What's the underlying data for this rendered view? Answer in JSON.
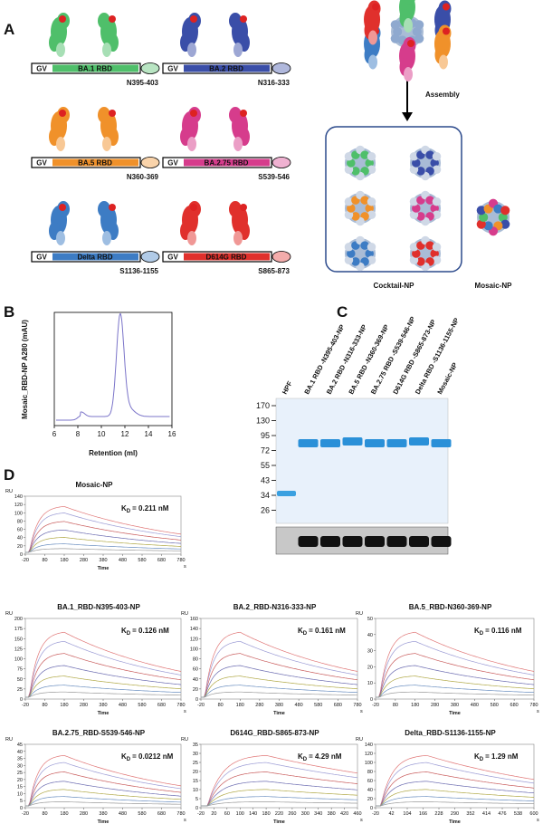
{
  "panel_a": {
    "letter": "A",
    "constructs": [
      {
        "gv": "GV",
        "rbd": "BA.1 RBD",
        "site": "N395-403",
        "color": "#4fbf6a"
      },
      {
        "gv": "GV",
        "rbd": "BA.2 RBD",
        "site": "N316-333",
        "color": "#3a4ea8"
      },
      {
        "gv": "GV",
        "rbd": "BA.5 RBD",
        "site": "N360-369",
        "color": "#f0912a"
      },
      {
        "gv": "GV",
        "rbd": "BA.2.75 RBD",
        "site": "S539-546",
        "color": "#d63c8c"
      },
      {
        "gv": "GV",
        "rbd": "Delta RBD",
        "site": "S1136-1155",
        "color": "#3d7cc4"
      },
      {
        "gv": "GV",
        "rbd": "D614G RBD",
        "site": "S865-873",
        "color": "#e0302c"
      }
    ],
    "assembly": "Assembly",
    "cocktail": "Cocktail-NP",
    "mosaic": "Mosaic-NP"
  },
  "panel_b": {
    "letter": "B",
    "ylabel": "Mosaic_RBD-NP A280 (mAU)",
    "xlabel": "Retention (ml)",
    "xlim": [
      6,
      16
    ],
    "xticks": [
      6,
      8,
      10,
      12,
      14,
      16
    ]
  },
  "panel_c": {
    "letter": "C",
    "lanes": [
      "HPF",
      "BA.1 RBD -N395-403-NP",
      "BA.2 RBD -N316-333-NP",
      "BA.5 RBD -N360-369-NP",
      "BA.2.75 RBD -S539-546-NP",
      "D614G RBD -S865-873-NP",
      "Delta RBD -S1136-1155-NP",
      "Mosaic-NP"
    ],
    "markers": [
      170,
      130,
      95,
      72,
      55,
      43,
      34,
      26
    ]
  },
  "panel_d": {
    "letter": "D",
    "y_unit": "RU",
    "x_label": "Time",
    "x_unit": "s",
    "kd_symbol": "K",
    "kd_subscript": "D",
    "plots": [
      {
        "title": "Mosaic-NP",
        "kd": "= 0.211 nM",
        "ylim": [
          0,
          140
        ],
        "yticks": [
          0,
          20,
          40,
          60,
          80,
          100,
          120,
          140
        ],
        "xlim": [
          -20,
          780
        ],
        "xticks": [
          -20,
          80,
          180,
          280,
          380,
          480,
          580,
          680,
          780
        ]
      },
      {
        "title": "BA.1_RBD-N395-403-NP",
        "kd": "= 0.126 nM",
        "ylim": [
          0,
          200
        ],
        "yticks": [
          0,
          25,
          50,
          75,
          100,
          125,
          150,
          175,
          200
        ],
        "xlim": [
          -20,
          780
        ],
        "xticks": [
          -20,
          80,
          180,
          280,
          380,
          480,
          580,
          680,
          780
        ]
      },
      {
        "title": "BA.2_RBD-N316-333-NP",
        "kd": "= 0.161 nM",
        "ylim": [
          0,
          160
        ],
        "yticks": [
          0,
          20,
          40,
          60,
          80,
          100,
          120,
          140,
          160
        ],
        "xlim": [
          -20,
          780
        ],
        "xticks": [
          -20,
          80,
          180,
          280,
          380,
          480,
          580,
          680,
          780
        ]
      },
      {
        "title": "BA.5_RBD-N360-369-NP",
        "kd": "= 0.116 nM",
        "ylim": [
          0,
          50
        ],
        "yticks": [
          0,
          10,
          20,
          30,
          40,
          50
        ],
        "xlim": [
          -20,
          780
        ],
        "xticks": [
          -20,
          80,
          180,
          280,
          380,
          480,
          580,
          680,
          780
        ]
      },
      {
        "title": "BA.2.75_RBD-S539-546-NP",
        "kd": "= 0.0212 nM",
        "ylim": [
          0,
          45
        ],
        "yticks": [
          0,
          5,
          10,
          15,
          20,
          25,
          30,
          35,
          40,
          45
        ],
        "xlim": [
          -20,
          780
        ],
        "xticks": [
          -20,
          80,
          180,
          280,
          380,
          480,
          580,
          680,
          780
        ]
      },
      {
        "title": "D614G_RBD-S865-873-NP",
        "kd": "= 4.29 nM",
        "ylim": [
          0,
          35
        ],
        "yticks": [
          0,
          5,
          10,
          15,
          20,
          25,
          30,
          35
        ],
        "xlim": [
          -20,
          460
        ],
        "xticks": [
          -20,
          20,
          60,
          100,
          140,
          180,
          220,
          260,
          300,
          340,
          380,
          420,
          460
        ]
      },
      {
        "title": "Delta_RBD-S1136-1155-NP",
        "kd": "= 1.29 nM",
        "ylim": [
          0,
          140
        ],
        "yticks": [
          0,
          20,
          40,
          60,
          80,
          100,
          120,
          140
        ],
        "xlim": [
          -20,
          600
        ],
        "xticks": [
          -20,
          42,
          104,
          166,
          228,
          290,
          352,
          414,
          476,
          538,
          600
        ]
      }
    ]
  }
}
